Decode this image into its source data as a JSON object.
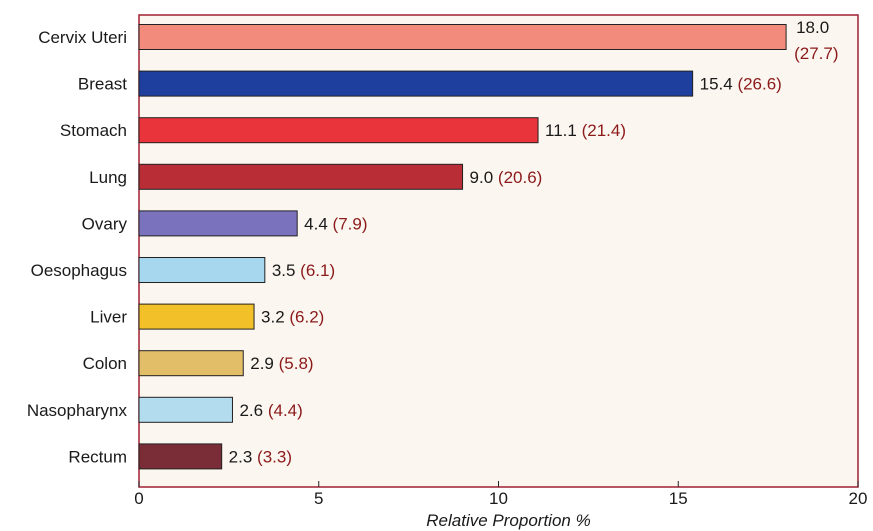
{
  "chart_data": {
    "type": "bar",
    "orientation": "horizontal",
    "categories": [
      "Cervix Uteri",
      "Breast",
      "Stomach",
      "Lung",
      "Ovary",
      "Oesophagus",
      "Liver",
      "Colon",
      "Nasopharynx",
      "Rectum"
    ],
    "values": [
      18.0,
      15.4,
      11.1,
      9.0,
      4.4,
      3.5,
      3.2,
      2.9,
      2.6,
      2.3
    ],
    "value_labels": [
      "18.0",
      "15.4",
      "11.1",
      "9.0",
      "4.4",
      "3.5",
      "3.2",
      "2.9",
      "2.6",
      "2.3"
    ],
    "secondary_labels": [
      "(27.7)",
      "(26.6)",
      "(21.4)",
      "(20.6)",
      "(7.9)",
      "(6.1)",
      "(6.2)",
      "(5.8)",
      "(4.4)",
      "(3.3)"
    ],
    "colors": [
      "#f28b7c",
      "#1f3f9e",
      "#e8343a",
      "#b82d36",
      "#7b72bd",
      "#a7d6ef",
      "#f2c029",
      "#e3be68",
      "#b3dcef",
      "#7b2d37"
    ],
    "xlim": [
      0,
      20
    ],
    "x_ticks": [
      "0",
      "5",
      "10",
      "15",
      "20"
    ],
    "xlabel": "Relative Proportion %",
    "title": "",
    "grid": false,
    "plot_background": "#fcf6f0",
    "frame_color": "#a02030",
    "secondary_label_color": "#8b1a1a"
  }
}
